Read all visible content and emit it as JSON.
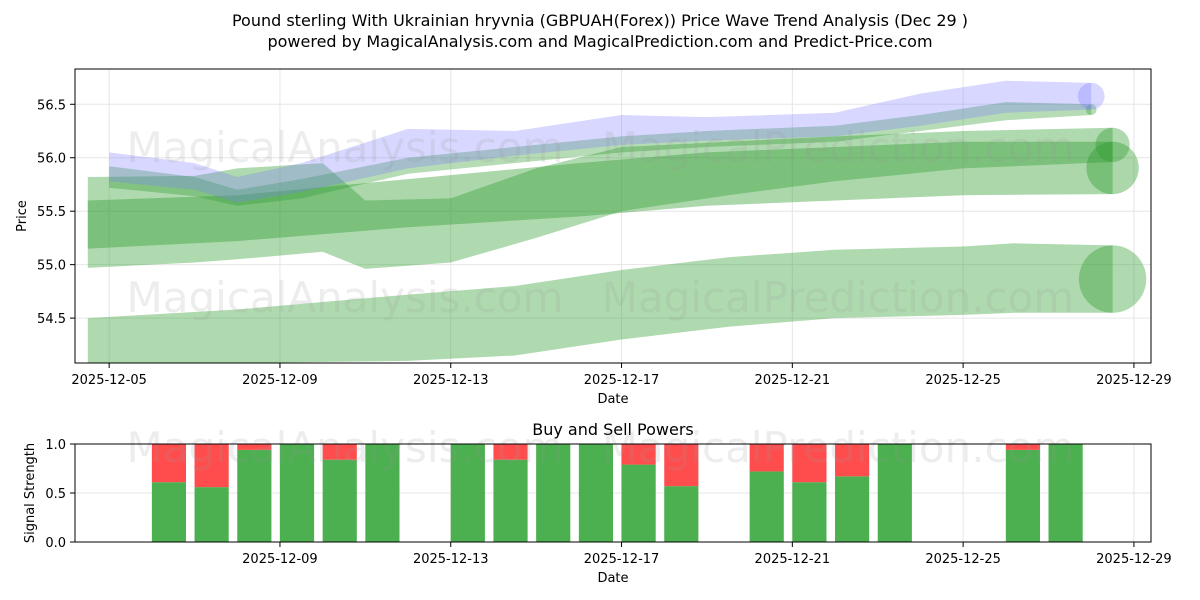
{
  "header": {
    "title_line1": "Pound sterling With Ukrainian hryvnia (GBPUAH(Forex)) Price Wave Trend Analysis (Dec 29 )",
    "title_line2": "powered by MagicalAnalysis.com and MagicalPrediction.com and Predict-Price.com"
  },
  "watermarks": {
    "left": "MagicalAnalysis.com",
    "right": "MagicalPrediction.com"
  },
  "colors": {
    "band_green": "#2e9a2e",
    "band_blue": "#7b7bff",
    "buy_green": "#4caf50",
    "sell_red": "#ff4d4d",
    "grid": "#e6e6e6"
  },
  "chart_data": [
    {
      "type": "area",
      "name": "price-wave-trend",
      "xlabel": "Date",
      "ylabel": "Price",
      "x_tick_labels": [
        "2025-12-05",
        "2025-12-09",
        "2025-12-13",
        "2025-12-17",
        "2025-12-21",
        "2025-12-25",
        "2025-12-29"
      ],
      "x_tick_days": [
        5,
        9,
        13,
        17,
        21,
        25,
        29
      ],
      "x_range_days": [
        4.2,
        29.4
      ],
      "y_tick_labels": [
        "54.5",
        "55.0",
        "55.5",
        "56.0",
        "56.5"
      ],
      "y_ticks": [
        54.5,
        55.0,
        55.5,
        56.0,
        56.5
      ],
      "ylim": [
        54.08,
        56.83
      ],
      "grid": true,
      "series": [
        {
          "name": "wide-band-low",
          "color": "band_green",
          "opacity": 0.38,
          "x": [
            4.5,
            8,
            12,
            14.5,
            17,
            19.5,
            22,
            25,
            26.2,
            28.5
          ],
          "lower": [
            54.08,
            54.08,
            54.1,
            54.15,
            54.3,
            54.42,
            54.5,
            54.53,
            54.55,
            54.55
          ],
          "upper": [
            54.5,
            54.58,
            54.72,
            54.8,
            54.95,
            55.07,
            55.14,
            55.17,
            55.2,
            55.18
          ]
        },
        {
          "name": "mid-band-a",
          "color": "band_green",
          "opacity": 0.38,
          "x": [
            4.5,
            7,
            8,
            10,
            11,
            13,
            15,
            17,
            19.5,
            22,
            25,
            28.5
          ],
          "lower": [
            54.97,
            55.02,
            55.05,
            55.12,
            54.96,
            55.02,
            55.25,
            55.5,
            55.65,
            55.78,
            55.9,
            55.96
          ],
          "upper": [
            55.82,
            55.83,
            55.9,
            55.95,
            55.6,
            55.62,
            55.9,
            56.1,
            56.15,
            56.2,
            56.25,
            56.28
          ]
        },
        {
          "name": "mid-band-b",
          "color": "band_green",
          "opacity": 0.4,
          "x": [
            4.5,
            8,
            12,
            16,
            19,
            22,
            25,
            28.5
          ],
          "lower": [
            55.15,
            55.22,
            55.35,
            55.45,
            55.55,
            55.6,
            55.65,
            55.66
          ],
          "upper": [
            55.6,
            55.65,
            55.8,
            55.95,
            56.05,
            56.1,
            56.15,
            56.15
          ]
        },
        {
          "name": "upper-band-green",
          "color": "band_green",
          "opacity": 0.35,
          "x": [
            5,
            7,
            8,
            9.5,
            12,
            14.5,
            17,
            19,
            22,
            24,
            26,
            28
          ],
          "lower": [
            55.72,
            55.64,
            55.55,
            55.62,
            55.85,
            55.95,
            56.05,
            56.1,
            56.15,
            56.25,
            56.35,
            56.4
          ],
          "upper": [
            55.92,
            55.82,
            55.7,
            55.8,
            56.0,
            56.1,
            56.2,
            56.25,
            56.3,
            56.4,
            56.52,
            56.5
          ]
        },
        {
          "name": "upper-band-blue",
          "color": "band_blue",
          "opacity": 0.3,
          "x": [
            5,
            7,
            8,
            9.5,
            12,
            14.5,
            17,
            19,
            22,
            24,
            26,
            28
          ],
          "lower": [
            55.78,
            55.7,
            55.58,
            55.68,
            55.9,
            56.02,
            56.12,
            56.16,
            56.2,
            56.3,
            56.42,
            56.45
          ],
          "upper": [
            56.05,
            55.95,
            55.82,
            55.95,
            56.27,
            56.25,
            56.4,
            56.38,
            56.42,
            56.6,
            56.72,
            56.7
          ]
        }
      ]
    },
    {
      "type": "bar",
      "name": "buy-and-sell-powers",
      "title": "Buy and Sell Powers",
      "xlabel": "Date",
      "ylabel": "Signal Strength",
      "x_tick_labels": [
        "2025-12-09",
        "2025-12-13",
        "2025-12-17",
        "2025-12-21",
        "2025-12-25",
        "2025-12-29"
      ],
      "x_tick_days": [
        9,
        13,
        17,
        21,
        25,
        29
      ],
      "x_range_days": [
        4.2,
        29.4
      ],
      "y_tick_labels": [
        "0.0",
        "0.5",
        "1.0"
      ],
      "y_ticks": [
        0.0,
        0.5,
        1.0
      ],
      "ylim": [
        0.0,
        1.0
      ],
      "grid": true,
      "x_days": [
        6.4,
        7.4,
        8.4,
        9.4,
        10.4,
        11.4,
        13.4,
        14.4,
        15.4,
        16.4,
        17.4,
        18.4,
        20.4,
        21.4,
        22.4,
        23.4,
        26.4,
        27.4
      ],
      "series": [
        {
          "name": "buy",
          "color": "buy_green",
          "values": [
            0.61,
            0.56,
            0.94,
            1.0,
            0.84,
            1.0,
            1.0,
            0.84,
            1.0,
            1.0,
            0.79,
            0.57,
            0.72,
            0.61,
            0.67,
            1.0,
            0.94,
            1.0
          ]
        },
        {
          "name": "sell",
          "color": "sell_red",
          "values": [
            0.39,
            0.44,
            0.06,
            0.0,
            0.16,
            0.0,
            0.0,
            0.16,
            0.0,
            0.0,
            0.21,
            0.43,
            0.28,
            0.39,
            0.33,
            0.0,
            0.06,
            0.0
          ]
        }
      ]
    }
  ]
}
